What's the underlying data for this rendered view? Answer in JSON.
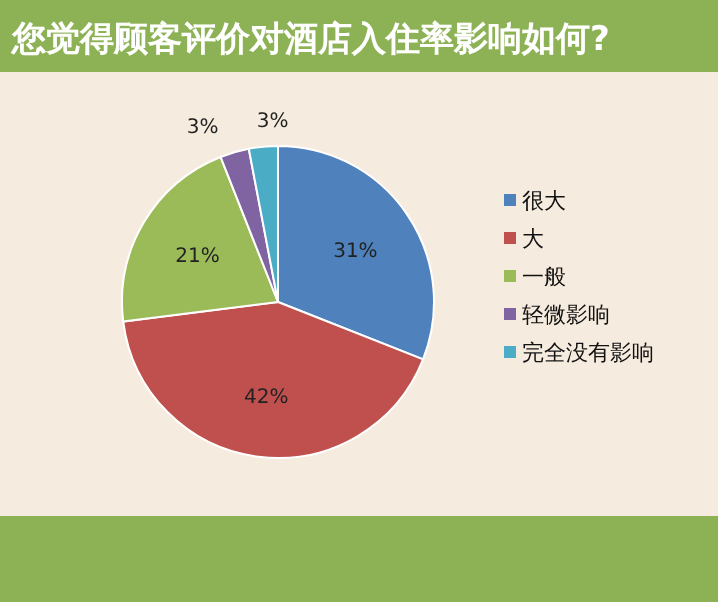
{
  "chart_data": {
    "type": "pie",
    "title": "您觉得顾客评价对酒店入住率影响如何?",
    "categories": [
      "很大",
      "大",
      "一般",
      "轻微影响",
      "完全没有影响"
    ],
    "values": [
      31,
      42,
      21,
      3,
      3
    ],
    "colors": [
      "#4f81bd",
      "#c0504d",
      "#9bbb59",
      "#8064a2",
      "#4bacc6"
    ],
    "value_labels": [
      "31%",
      "42%",
      "21%",
      "3%",
      "3%"
    ],
    "legend": "right"
  }
}
